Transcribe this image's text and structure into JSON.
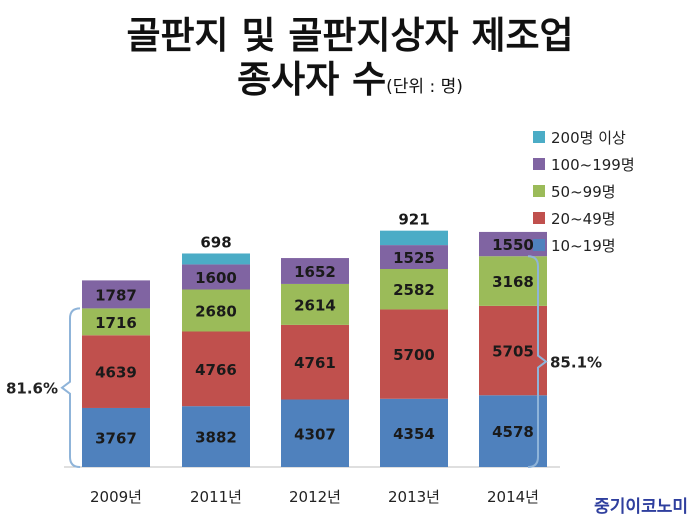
{
  "title": {
    "line1": "골판지 및 골판지상자 제조업",
    "line2": "종사자 수",
    "unit": "(단위 : 명)"
  },
  "brand": "중기이코노미",
  "colors": {
    "s1": "#4f81bd",
    "s2": "#c0504d",
    "s3": "#9bbb59",
    "s4": "#8064a2",
    "s5": "#4bacc6",
    "bracket": "#8fb4d9"
  },
  "chart_data": {
    "type": "bar",
    "stacked": true,
    "categories": [
      "2009년",
      "2011년",
      "2012년",
      "2013년",
      "2014년"
    ],
    "series": [
      {
        "name": "10~19명",
        "values": [
          3767,
          3882,
          4307,
          4354,
          4578
        ],
        "color_key": "s1"
      },
      {
        "name": "20~49명",
        "values": [
          4639,
          4766,
          4761,
          5700,
          5705
        ],
        "color_key": "s2"
      },
      {
        "name": "50~99명",
        "values": [
          1716,
          2680,
          2614,
          2582,
          3168
        ],
        "color_key": "s3"
      },
      {
        "name": "100~199명",
        "values": [
          1787,
          1600,
          1652,
          1525,
          1550
        ],
        "color_key": "s4"
      },
      {
        "name": "200명 이상",
        "values": [
          0,
          698,
          0,
          921,
          0
        ],
        "color_key": "s5"
      }
    ],
    "legend_position": "right",
    "grid": false,
    "annotations": {
      "left_bracket": {
        "text": "81.6%",
        "category": "2009년"
      },
      "right_bracket": {
        "text": "85.1%",
        "category": "2014년"
      }
    }
  }
}
